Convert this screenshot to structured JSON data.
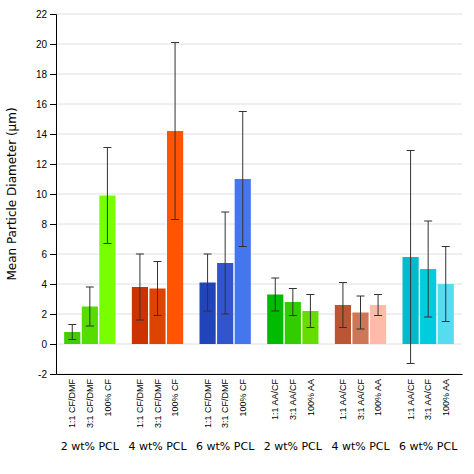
{
  "chart_data": {
    "type": "bar",
    "ylabel": "Mean Particle Diameter (μm)",
    "ylim": [
      -2,
      22
    ],
    "yticks": [
      -2,
      0,
      2,
      4,
      6,
      8,
      10,
      12,
      14,
      16,
      18,
      20,
      22
    ],
    "grid": true,
    "groups": [
      {
        "label": "2 wt% PCL",
        "categories": [
          "1:1 CF/DMF",
          "3:1 CF/DMF",
          "100% CF"
        ],
        "values": [
          0.8,
          2.5,
          9.9
        ],
        "errors": [
          0.5,
          1.3,
          3.2
        ],
        "colors": [
          "#44cc00",
          "#55dd00",
          "#77ff00"
        ]
      },
      {
        "label": "4 wt% PCL",
        "categories": [
          "1:1 CF/DMF",
          "3:1 CF/DMF",
          "100% CF"
        ],
        "values": [
          3.8,
          3.7,
          14.2
        ],
        "errors": [
          2.2,
          1.8,
          5.9
        ],
        "colors": [
          "#cc3300",
          "#dd4400",
          "#ff5500"
        ]
      },
      {
        "label": "6 wt% PCL",
        "categories": [
          "1:1 CF/DMF",
          "3:1 CF/DMF",
          "100% CF"
        ],
        "values": [
          4.1,
          5.4,
          11.0
        ],
        "errors": [
          1.9,
          3.4,
          4.5
        ],
        "colors": [
          "#2244bb",
          "#3355cc",
          "#4477ee"
        ]
      },
      {
        "label": "2 wt% PCL",
        "categories": [
          "1:1 AA/CF",
          "3:1 AA/CF",
          "100% AA"
        ],
        "values": [
          3.3,
          2.8,
          2.2
        ],
        "errors": [
          1.1,
          0.9,
          1.1
        ],
        "colors": [
          "#00bb00",
          "#33cc00",
          "#66dd00"
        ]
      },
      {
        "label": "4 wt% PCL",
        "categories": [
          "1:1 AA/CF",
          "3:1 AA/CF",
          "100% AA"
        ],
        "values": [
          2.6,
          2.1,
          2.6
        ],
        "errors": [
          1.5,
          1.1,
          0.7
        ],
        "colors": [
          "#bb5533",
          "#cc7755",
          "#ffbbaa"
        ]
      },
      {
        "label": "6 wt% PCL",
        "categories": [
          "1:1 AA/CF",
          "3:1 AA/CF",
          "100% AA"
        ],
        "values": [
          5.8,
          5.0,
          4.0
        ],
        "errors": [
          7.1,
          3.2,
          2.5
        ],
        "colors": [
          "#00bbcc",
          "#00ccdd",
          "#55ddee"
        ]
      }
    ]
  }
}
